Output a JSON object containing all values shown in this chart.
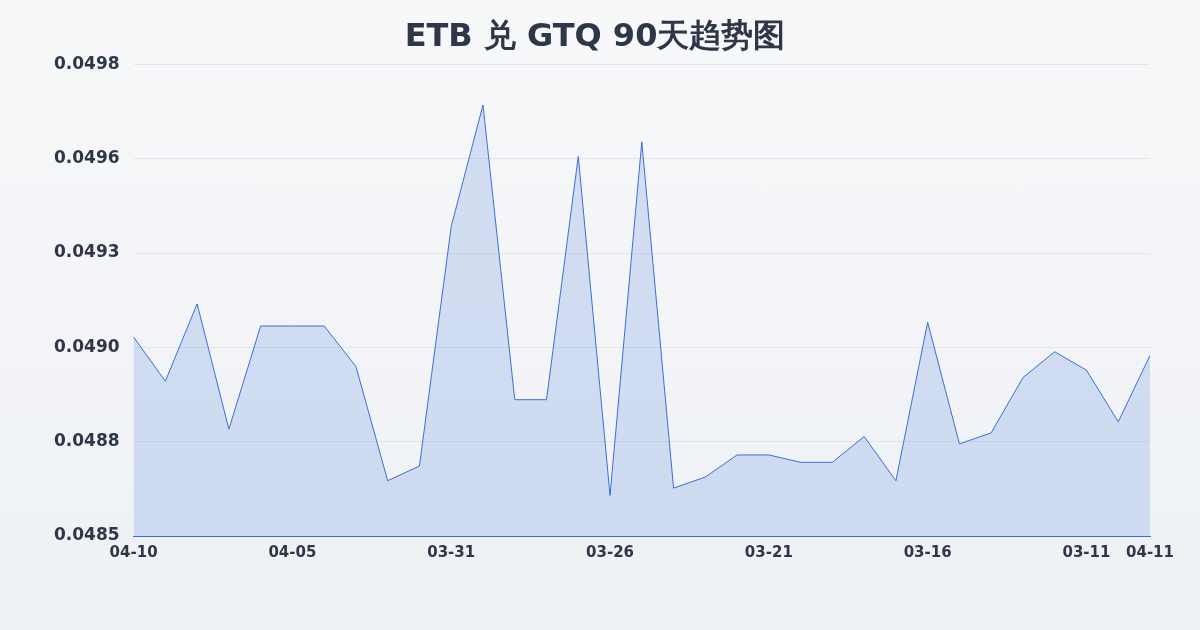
{
  "chart_data": {
    "type": "area",
    "title": "ETB 兑 GTQ 90天趋势图",
    "categories": [
      "04-10",
      null,
      null,
      null,
      null,
      "04-05",
      null,
      null,
      null,
      null,
      "03-31",
      null,
      null,
      null,
      null,
      "03-26",
      null,
      null,
      null,
      null,
      "03-21",
      null,
      null,
      null,
      null,
      "03-16",
      null,
      null,
      null,
      null,
      "03-11",
      null,
      "04-11"
    ],
    "series": [
      {
        "color": "#3a6fd8",
        "values": [
          0.04907,
          0.04895,
          0.04916,
          0.04882,
          0.0491,
          0.0491,
          0.0491,
          0.04899,
          0.04868,
          0.04872,
          0.04937,
          0.0497,
          0.0489,
          0.0489,
          0.04956,
          0.04864,
          0.0496,
          0.04866,
          0.04869,
          0.04875,
          0.04875,
          0.04873,
          0.04873,
          0.0488,
          0.04868,
          0.04911,
          0.04878,
          0.04881,
          0.04896,
          0.04903,
          0.04898,
          0.04884,
          0.04902
        ]
      }
    ],
    "ylim": [
      0.04853,
      0.04981
    ],
    "yticks": [
      {
        "value": 0.04853,
        "label": "0.0485"
      },
      {
        "value": 0.048786,
        "label": "0.0488"
      },
      {
        "value": 0.049042,
        "label": "0.0490"
      },
      {
        "value": 0.049298,
        "label": "0.0493"
      },
      {
        "value": 0.049554,
        "label": "0.0496"
      },
      {
        "value": 0.04981,
        "label": "0.0498"
      }
    ],
    "grid": "y",
    "legend": false,
    "marker": "none",
    "line_style": "solid"
  }
}
